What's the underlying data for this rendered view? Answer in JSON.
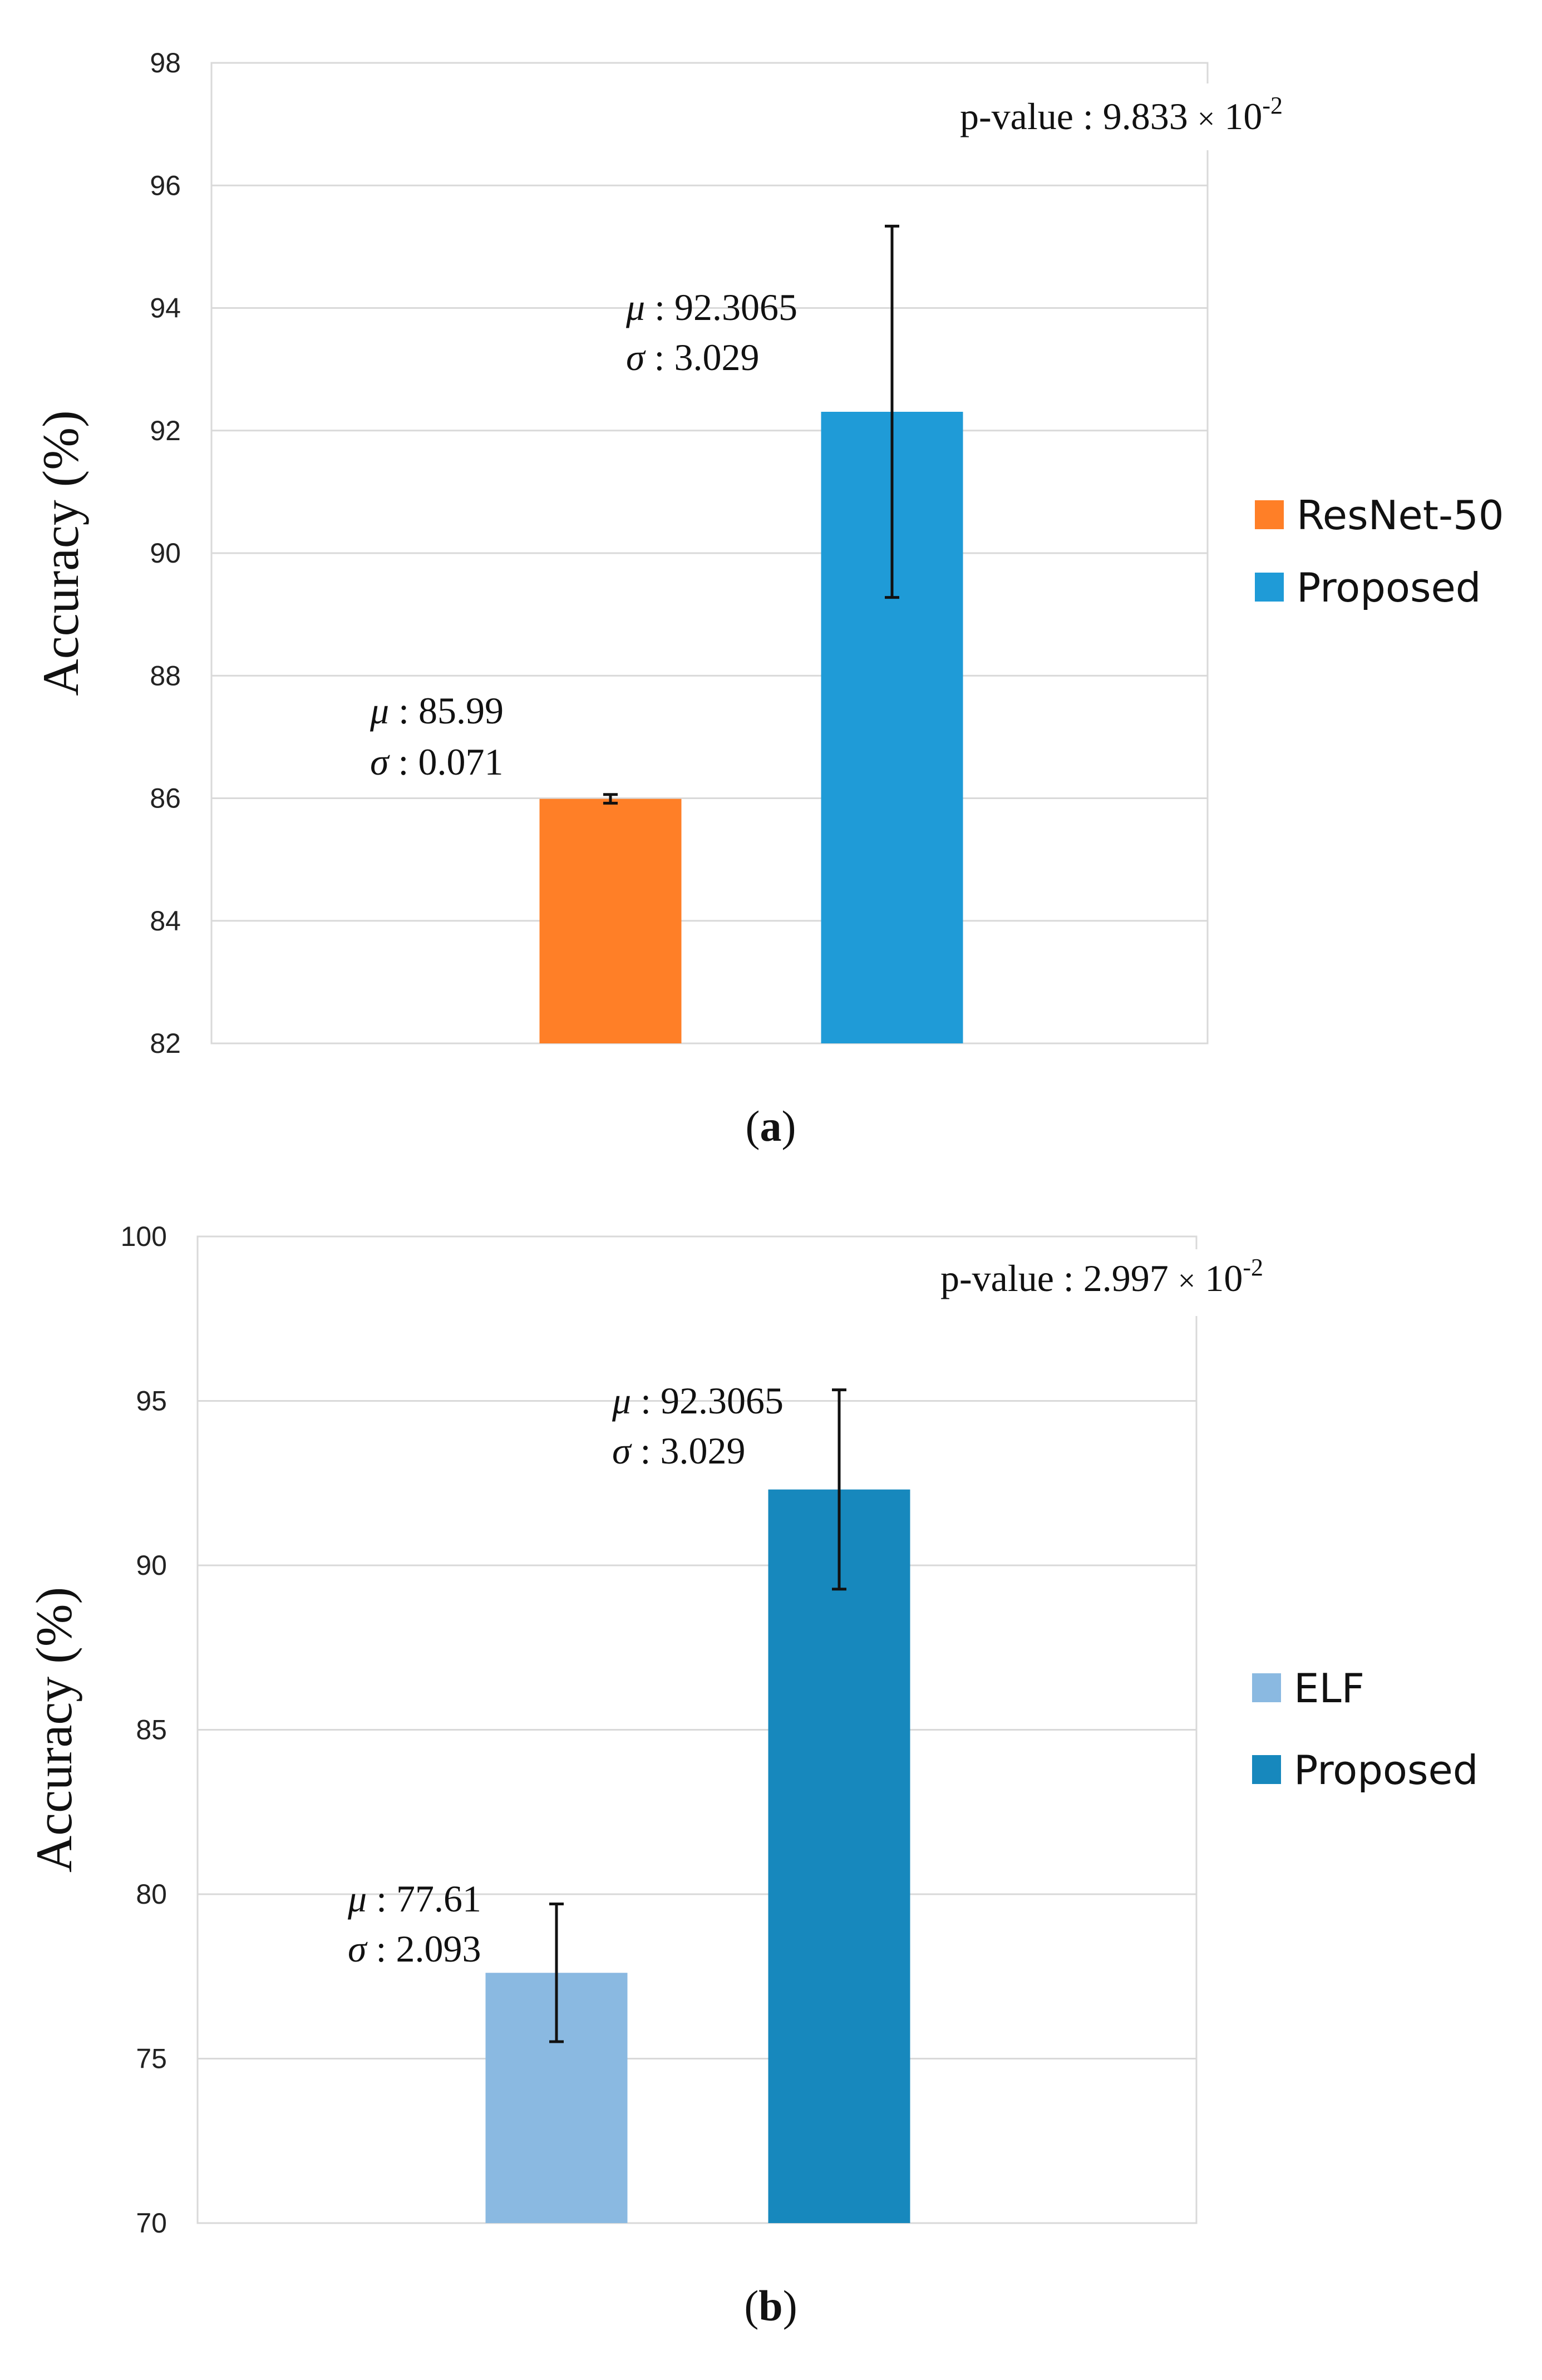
{
  "chart_data": [
    {
      "type": "bar",
      "caption": "a",
      "ylabel": "Accuracy (%)",
      "ylim": [
        82,
        98
      ],
      "ytick_step": 2,
      "grid": true,
      "legend_placement": "right",
      "categories": [
        "ResNet-50",
        "Proposed"
      ],
      "values": [
        85.99,
        92.3065
      ],
      "errors": [
        0.071,
        3.029
      ],
      "colors": [
        "#ff7f27",
        "#1f9bd7"
      ],
      "legend": [
        "ResNet-50",
        "Proposed"
      ],
      "annotations": [
        {
          "mu_label": "μ",
          "mu_value": ": 85.99",
          "sigma_label": "σ",
          "sigma_value": ": 0.071"
        },
        {
          "mu_label": "μ",
          "mu_value": ": 92.3065",
          "sigma_label": "σ",
          "sigma_value": ": 3.029"
        }
      ],
      "pvalue": {
        "prefix": "p-value : 9.833 ",
        "times": "×",
        "base": " 10",
        "exponent": "-2"
      }
    },
    {
      "type": "bar",
      "caption": "b",
      "ylabel": "Accuracy (%)",
      "ylim": [
        70,
        100
      ],
      "ytick_step": 5,
      "grid": true,
      "legend_placement": "right",
      "categories": [
        "ELF",
        "Proposed"
      ],
      "values": [
        77.61,
        92.3065
      ],
      "errors": [
        2.093,
        3.029
      ],
      "colors": [
        "#8ab9e1",
        "#1788bd"
      ],
      "legend": [
        "ELF",
        "Proposed"
      ],
      "annotations": [
        {
          "mu_label": "μ",
          "mu_value": ": 77.61",
          "sigma_label": "σ",
          "sigma_value": ": 2.093"
        },
        {
          "mu_label": "μ",
          "mu_value": ": 92.3065",
          "sigma_label": "σ",
          "sigma_value": ": 3.029"
        }
      ],
      "pvalue": {
        "prefix": "p-value : 2.997 ",
        "times": "×",
        "base": " 10",
        "exponent": "-2"
      }
    }
  ]
}
